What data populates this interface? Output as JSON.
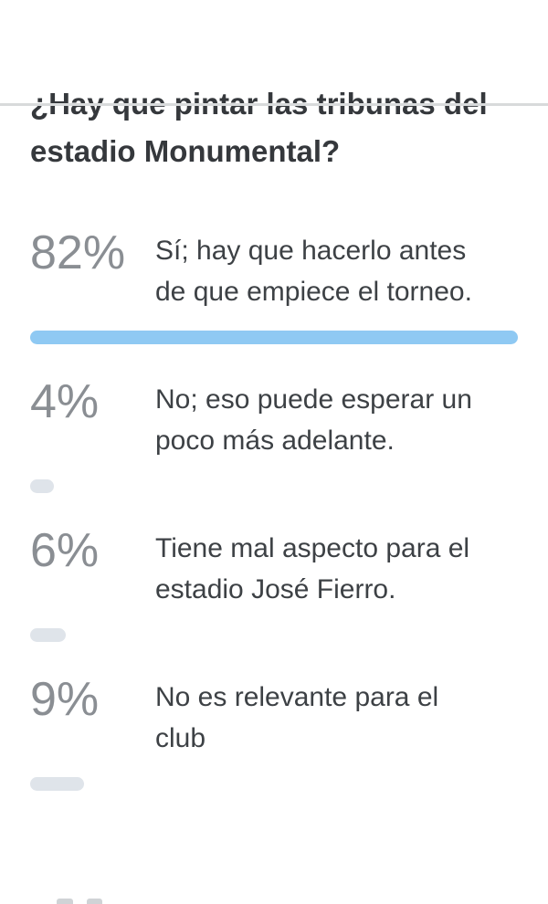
{
  "page": {
    "background": "#ffffff",
    "divider_color": "#d8dadb"
  },
  "poll": {
    "question": "¿Hay que pintar las tribunas del estadio Monumental?",
    "options": [
      {
        "percent_label": "82%",
        "value": 82,
        "text": "Sí; hay que hacerlo antes de que empiece el torneo.",
        "highlighted": true
      },
      {
        "percent_label": "4%",
        "value": 4,
        "text": "No; eso puede esperar un poco más adelante.",
        "highlighted": false
      },
      {
        "percent_label": "6%",
        "value": 6,
        "text": "Tiene mal aspecto para el estadio José Fierro.",
        "highlighted": false
      },
      {
        "percent_label": "9%",
        "value": 9,
        "text": "No es relevante para el club",
        "highlighted": false
      }
    ],
    "colors": {
      "highlight_bar": "#8fc9f3",
      "muted_bar": "#dfe4ea",
      "percent_text": "#8a8e93",
      "option_text": "#3d4145",
      "question_text": "#35383c"
    }
  },
  "chart_data": {
    "type": "bar",
    "orientation": "horizontal",
    "title": "¿Hay que pintar las tribunas del estadio Monumental?",
    "categories": [
      "Sí; hay que hacerlo antes de que empiece el torneo.",
      "No; eso puede esperar un poco más adelante.",
      "Tiene mal aspecto para el estadio José Fierro.",
      "No es relevante para el club"
    ],
    "values": [
      82,
      4,
      6,
      9
    ],
    "value_labels": [
      "82%",
      "4%",
      "6%",
      "9%"
    ],
    "unit": "percent",
    "value_range": [
      0,
      82
    ],
    "scaling": "bar-width-relative-to-max",
    "highlight_index": 0,
    "colors": {
      "highlight": "#8fc9f3",
      "default": "#dfe4ea"
    },
    "legend": false,
    "axes": false,
    "grid": false
  }
}
